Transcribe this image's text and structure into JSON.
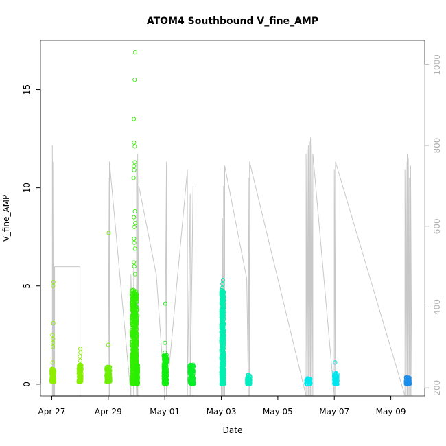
{
  "chart_data": {
    "type": "scatter",
    "title": "ATOM4 Southbound V_fine_AMP",
    "xlabel": "Date",
    "ylabel": "V_fine_AMP",
    "x_ticks": [
      "Apr 27",
      "Apr 29",
      "May 01",
      "May 03",
      "May 05",
      "May 07",
      "May 09"
    ],
    "xlim": [
      "2000-04-26.6",
      "2000-05-10.2"
    ],
    "ylim": [
      -0.6,
      17.5
    ],
    "y_ticks": [
      0,
      5,
      10,
      15
    ],
    "y2_ticks": [
      200,
      400,
      600,
      800,
      1000
    ],
    "y2lim": [
      1060,
      180
    ],
    "grid": false,
    "colors": {
      "frame": "#555555",
      "depth_line": "#c8c8c8",
      "right_axis": "#b0b0b0"
    },
    "series": [
      {
        "role": "amplitude",
        "clusters": [
          {
            "day": 0.04,
            "width": 0.1,
            "color": "#8fee00",
            "min": 0.1,
            "max": 0.8,
            "outliers": [
              5.2,
              5.0,
              3.1,
              3.1,
              2.5,
              2.3,
              2.1,
              1.9,
              1.1
            ]
          },
          {
            "day": 1.0,
            "width": 0.1,
            "color": "#86ee00",
            "min": 0.1,
            "max": 1.0,
            "outliers": [
              1.8,
              1.6,
              1.4,
              1.2
            ]
          },
          {
            "day": 2.0,
            "width": 0.14,
            "color": "#6dee00",
            "min": 0.1,
            "max": 0.9,
            "outliers": [
              7.7,
              2.0
            ]
          },
          {
            "day": 2.92,
            "width": 0.18,
            "color": "#31ee00",
            "min": 0.0,
            "max": 4.8,
            "outliers": [
              16.9,
              15.5,
              13.5,
              12.3,
              12.1,
              11.3,
              11.1,
              10.9,
              10.5,
              8.8,
              8.5,
              8.2,
              8.0,
              7.4,
              7.2,
              6.9,
              6.2,
              6.0,
              5.6
            ]
          },
          {
            "day": 3.02,
            "width": 0.06,
            "color": "#2aee00",
            "min": 0.0,
            "max": 1.0,
            "outliers": [
              3.8,
              3.5,
              2.5
            ]
          },
          {
            "day": 4.02,
            "width": 0.12,
            "color": "#10ee10",
            "min": 0.0,
            "max": 1.5,
            "outliers": [
              4.1,
              2.1,
              1.6
            ]
          },
          {
            "day": 4.95,
            "width": 0.16,
            "color": "#08ee28",
            "min": 0.0,
            "max": 1.0,
            "outliers": []
          },
          {
            "day": 6.05,
            "width": 0.1,
            "color": "#00eeb0",
            "min": 0.0,
            "max": 4.8,
            "outliers": [
              5.3,
              5.1,
              4.9,
              3.5,
              3.0,
              2.7,
              1.5,
              1.2,
              0.9
            ]
          },
          {
            "day": 6.97,
            "width": 0.12,
            "color": "#00eec0",
            "min": 0.0,
            "max": 0.5,
            "outliers": []
          },
          {
            "day": 9.08,
            "width": 0.16,
            "color": "#00eaee",
            "min": 0.0,
            "max": 0.3,
            "outliers": []
          },
          {
            "day": 10.05,
            "width": 0.12,
            "color": "#00e4ee",
            "min": 0.0,
            "max": 0.6,
            "outliers": [
              1.1
            ]
          },
          {
            "day": 12.6,
            "width": 0.14,
            "color": "#1a8fee",
            "min": 0.0,
            "max": 0.35,
            "outliers": []
          }
        ]
      },
      {
        "role": "depth",
        "x_day": [
          0.0,
          0.02,
          0.02,
          0.04,
          0.04,
          0.06,
          0.06,
          0.08,
          0.08,
          0.1,
          0.1,
          1.0,
          1.0,
          2.0,
          2.0,
          2.04,
          2.04,
          2.8,
          2.8,
          2.9,
          2.9,
          3.0,
          3.0,
          3.04,
          3.04,
          3.08,
          3.08,
          3.7,
          4.0,
          4.0,
          4.06,
          4.06,
          4.8,
          4.8,
          4.9,
          4.9,
          5.0,
          5.0,
          6.0,
          6.0,
          6.04,
          6.04,
          6.08,
          6.08,
          6.12,
          6.12,
          6.9,
          6.96,
          6.96,
          7.0,
          7.0,
          9.0,
          9.0,
          9.04,
          9.04,
          9.08,
          9.08,
          9.12,
          9.12,
          9.16,
          9.16,
          9.2,
          9.2,
          9.24,
          9.24,
          10.0,
          10.0,
          10.04,
          10.04,
          12.5,
          12.5,
          12.54,
          12.54,
          12.58,
          12.58,
          12.62,
          12.62,
          12.66,
          12.66,
          12.7,
          12.7,
          12.74
        ],
        "y_m": [
          180,
          180,
          800,
          180,
          760,
          180,
          500,
          180,
          500,
          180,
          500,
          500,
          180,
          180,
          720,
          180,
          760,
          180,
          480,
          180,
          500,
          180,
          760,
          180,
          780,
          180,
          700,
          480,
          180,
          180,
          760,
          180,
          740,
          180,
          680,
          180,
          700,
          180,
          180,
          470,
          180,
          620,
          180,
          700,
          180,
          750,
          470,
          180,
          720,
          180,
          760,
          180,
          780,
          180,
          790,
          180,
          800,
          180,
          810,
          180,
          820,
          180,
          800,
          180,
          780,
          180,
          740,
          180,
          760,
          180,
          740,
          180,
          760,
          180,
          780,
          180,
          770,
          180,
          720,
          180,
          750,
          180
        ]
      }
    ]
  }
}
